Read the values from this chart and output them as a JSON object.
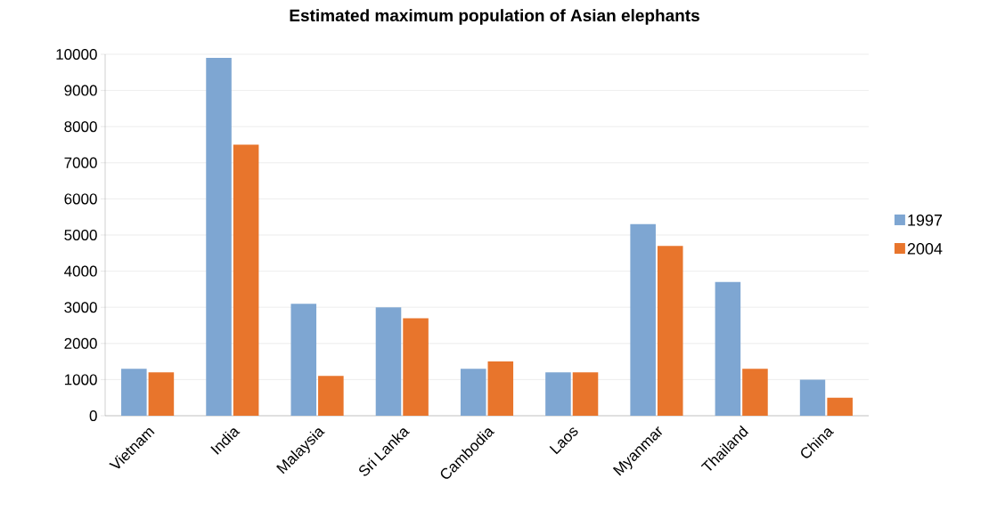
{
  "chart_data": {
    "type": "bar",
    "title": "Estimated maximum population of Asian elephants",
    "categories": [
      "Vietnam",
      "India",
      "Malaysia",
      "Sri Lanka",
      "Cambodia",
      "Laos",
      "Myanmar",
      "Thailand",
      "China"
    ],
    "series": [
      {
        "name": "1997",
        "color": "#7ea6d2",
        "values": [
          1300,
          9900,
          3100,
          3000,
          1300,
          1200,
          5300,
          3700,
          1000
        ]
      },
      {
        "name": "2004",
        "color": "#e8752c",
        "values": [
          1200,
          7500,
          1100,
          2700,
          1500,
          1200,
          4700,
          1300,
          500
        ]
      }
    ],
    "ylim": [
      0,
      10000
    ],
    "yticks": [
      0,
      1000,
      2000,
      3000,
      4000,
      5000,
      6000,
      7000,
      8000,
      9000,
      10000
    ],
    "grid": "y",
    "legend": "right"
  }
}
